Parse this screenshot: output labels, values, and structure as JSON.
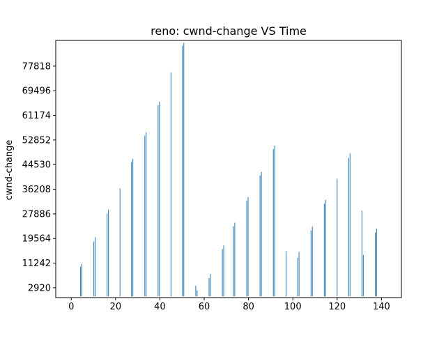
{
  "chart_data": {
    "type": "bar",
    "title": "reno: cwnd-change VS Time",
    "xlabel": "",
    "ylabel": "cwnd-change",
    "xlim": [
      -7,
      149
    ],
    "ylim": [
      -400,
      86500
    ],
    "x_ticks": [
      0,
      20,
      40,
      60,
      80,
      100,
      120,
      140
    ],
    "y_ticks": [
      2920,
      11242,
      19564,
      27886,
      36208,
      44530,
      52852,
      61174,
      69496,
      77818
    ],
    "bar_color": "#1f77b4",
    "bar_width": 0.3,
    "x": [
      4.2,
      4.8,
      10.2,
      10.8,
      16.2,
      16.8,
      22.0,
      27.2,
      27.8,
      33.2,
      33.8,
      39.2,
      39.8,
      45.0,
      50.2,
      50.8,
      56.2,
      56.8,
      62.2,
      62.8,
      68.2,
      68.8,
      73.2,
      73.8,
      79.2,
      79.8,
      85.2,
      85.8,
      91.2,
      91.8,
      97.0,
      102.2,
      102.8,
      108.2,
      108.8,
      114.2,
      114.8,
      120.0,
      125.2,
      125.8,
      131.2,
      131.8,
      137.2,
      137.8
    ],
    "values": [
      10000,
      11000,
      18600,
      20000,
      28000,
      29300,
      36500,
      45400,
      46500,
      54300,
      55500,
      64600,
      65800,
      75700,
      84700,
      85700,
      3600,
      2000,
      6200,
      7600,
      16000,
      17200,
      23700,
      24900,
      32300,
      33500,
      40900,
      42100,
      49800,
      51000,
      15300,
      13000,
      15000,
      22300,
      23600,
      31300,
      32600,
      39800,
      46800,
      48300,
      29000,
      14000,
      21600,
      22900
    ]
  }
}
